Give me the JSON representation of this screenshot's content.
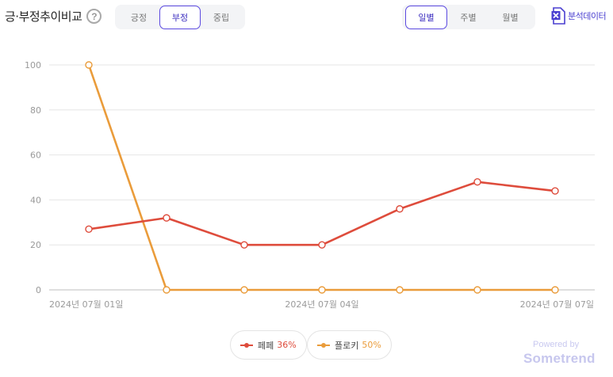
{
  "header": {
    "title": "긍·부정추이비교",
    "help_glyph": "?"
  },
  "sentiment_tabs": [
    {
      "label": "긍정",
      "active": false
    },
    {
      "label": "부정",
      "active": true
    },
    {
      "label": "중립",
      "active": false
    }
  ],
  "period_tabs": [
    {
      "label": "일별",
      "active": true
    },
    {
      "label": "주별",
      "active": false
    },
    {
      "label": "월별",
      "active": false
    }
  ],
  "export": {
    "label": "분석데이터",
    "icon": "excel-icon",
    "color": "#4a3fd0"
  },
  "chart_data": {
    "type": "line",
    "x": [
      "2024-07-01",
      "2024-07-02",
      "2024-07-03",
      "2024-07-04",
      "2024-07-05",
      "2024-07-06",
      "2024-07-07"
    ],
    "x_tick_labels": [
      {
        "index": 0,
        "label": "2024년 07월 01일"
      },
      {
        "index": 3,
        "label": "2024년 07월 04일"
      },
      {
        "index": 6,
        "label": "2024년 07월 07일"
      }
    ],
    "ylim": [
      0,
      100
    ],
    "y_ticks": [
      0,
      20,
      40,
      60,
      80,
      100
    ],
    "grid": true,
    "legend_position": "bottom-center",
    "series": [
      {
        "name": "페페",
        "share": "36%",
        "color": "#de4c3c",
        "values": [
          27,
          32,
          20,
          20,
          36,
          48,
          44
        ]
      },
      {
        "name": "플로키",
        "share": "50%",
        "color": "#ea9c3b",
        "values": [
          100,
          0,
          0,
          0,
          0,
          0,
          0
        ]
      }
    ]
  },
  "footer": {
    "powered_by": "Powered by",
    "brand": "Sometrend"
  }
}
